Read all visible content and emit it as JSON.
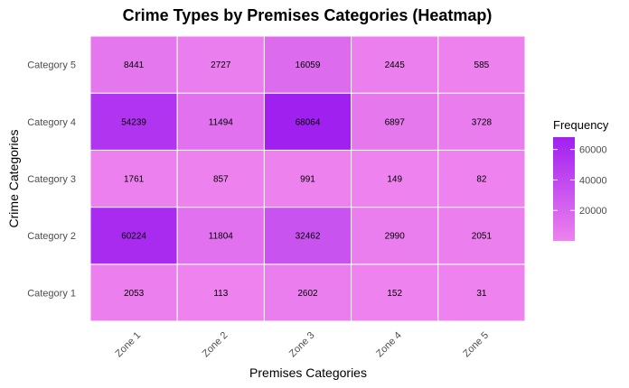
{
  "chart_data": {
    "type": "heatmap",
    "title": "Crime Types by Premises Categories (Heatmap)",
    "xlabel": "Premises Categories",
    "ylabel": "Crime Categories",
    "x_categories": [
      "Zone 1",
      "Zone 2",
      "Zone 3",
      "Zone 4",
      "Zone 5"
    ],
    "y_categories": [
      "Category 1",
      "Category 2",
      "Category 3",
      "Category 4",
      "Category 5"
    ],
    "values": [
      [
        2053,
        113,
        2602,
        152,
        31
      ],
      [
        60224,
        11804,
        32462,
        2990,
        2051
      ],
      [
        1761,
        857,
        991,
        149,
        82
      ],
      [
        54239,
        11494,
        68064,
        6897,
        3728
      ],
      [
        8441,
        2727,
        16059,
        2445,
        585
      ]
    ],
    "legend": {
      "title": "Frequency",
      "ticks": [
        20000,
        40000,
        60000
      ],
      "range": [
        31,
        68064
      ],
      "low_color": "#ee82ee",
      "high_color": "#a020f0",
      "placement": "right"
    }
  }
}
